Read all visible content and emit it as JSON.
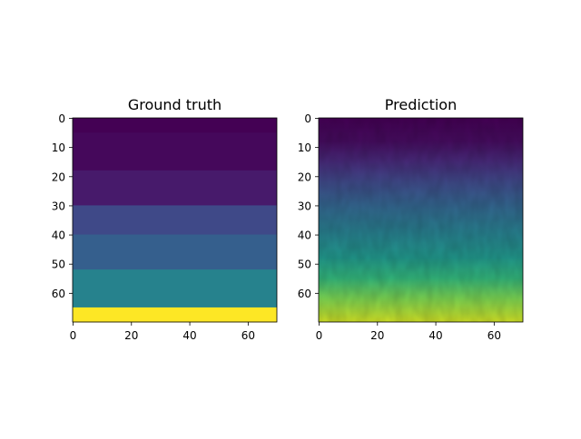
{
  "chart_data": [
    {
      "type": "heatmap",
      "title": "Ground truth",
      "colormap": "viridis",
      "x_range": [
        0,
        70
      ],
      "y_range": [
        0,
        70
      ],
      "y_inverted": true,
      "x_ticks": [
        0,
        20,
        40,
        60
      ],
      "y_ticks": [
        0,
        10,
        20,
        30,
        40,
        50,
        60
      ],
      "x_tick_labels": [
        "0",
        "20",
        "40",
        "60"
      ],
      "y_tick_labels": [
        "0",
        "10",
        "20",
        "30",
        "40",
        "50",
        "60"
      ],
      "layers": [
        {
          "y_start": 0,
          "y_end": 5,
          "value": 0.0
        },
        {
          "y_start": 5,
          "y_end": 18,
          "value": 0.02
        },
        {
          "y_start": 18,
          "y_end": 30,
          "value": 0.07
        },
        {
          "y_start": 30,
          "y_end": 40,
          "value": 0.22
        },
        {
          "y_start": 40,
          "y_end": 52,
          "value": 0.3
        },
        {
          "y_start": 52,
          "y_end": 65,
          "value": 0.44
        },
        {
          "y_start": 65,
          "y_end": 70,
          "value": 1.0
        }
      ]
    },
    {
      "type": "heatmap",
      "title": "Prediction",
      "colormap": "viridis",
      "x_range": [
        0,
        70
      ],
      "y_range": [
        0,
        70
      ],
      "y_inverted": true,
      "x_ticks": [
        0,
        20,
        40,
        60
      ],
      "y_ticks": [
        0,
        10,
        20,
        30,
        40,
        50,
        60
      ],
      "x_tick_labels": [
        "0",
        "20",
        "40",
        "60"
      ],
      "y_tick_labels": [
        "0",
        "10",
        "20",
        "30",
        "40",
        "50",
        "60"
      ],
      "depth_profile": [
        {
          "y": 0,
          "value": 0.0
        },
        {
          "y": 8,
          "value": 0.03
        },
        {
          "y": 15,
          "value": 0.12
        },
        {
          "y": 22,
          "value": 0.22
        },
        {
          "y": 30,
          "value": 0.32
        },
        {
          "y": 40,
          "value": 0.43
        },
        {
          "y": 48,
          "value": 0.52
        },
        {
          "y": 55,
          "value": 0.65
        },
        {
          "y": 62,
          "value": 0.8
        },
        {
          "y": 70,
          "value": 0.93
        }
      ]
    }
  ]
}
